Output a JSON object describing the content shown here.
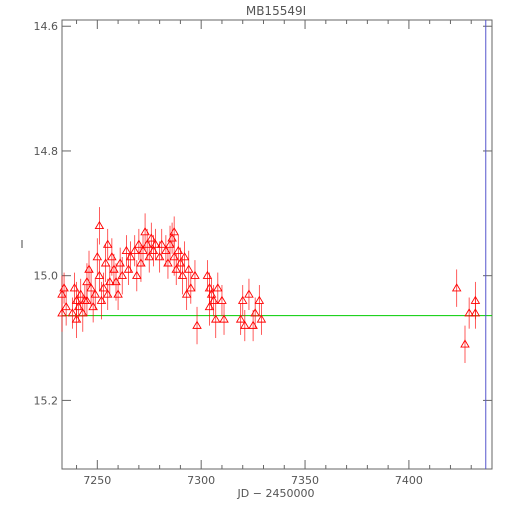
{
  "chart_data": {
    "type": "scatter",
    "title": "MB15549I",
    "xlabel": "JD − 2450000",
    "ylabel": "I",
    "xlim": [
      7233,
      7440
    ],
    "ylim": [
      15.31,
      14.59
    ],
    "y_inverted": true,
    "grid": false,
    "x_ticks": [
      7250,
      7300,
      7350,
      7400
    ],
    "y_ticks": [
      14.6,
      14.8,
      15.0,
      15.2
    ],
    "x_tick_labels": [
      "7250",
      "7300",
      "7350",
      "7400"
    ],
    "y_tick_labels": [
      "14.6",
      "14.8",
      "15.0",
      "15.2"
    ],
    "reference_line": {
      "y": 15.064,
      "color": "#00cc00"
    },
    "vertical_marker": {
      "x": 7437,
      "color": "#5555cc"
    },
    "series": [
      {
        "marker": "triangle",
        "color": "#ff0000",
        "points": [
          [
            7233,
            15.03,
            0.03
          ],
          [
            7233,
            15.06,
            0.03
          ],
          [
            7234,
            15.02,
            0.025
          ],
          [
            7235,
            15.05,
            0.03
          ],
          [
            7238,
            15.06,
            0.025
          ],
          [
            7239,
            15.02,
            0.025
          ],
          [
            7240,
            15.04,
            0.03
          ],
          [
            7240,
            15.07,
            0.03
          ],
          [
            7241,
            15.05,
            0.025
          ],
          [
            7242,
            15.03,
            0.025
          ],
          [
            7243,
            15.06,
            0.03
          ],
          [
            7244,
            15.04,
            0.025
          ],
          [
            7245,
            15.01,
            0.03
          ],
          [
            7245,
            15.04,
            0.025
          ],
          [
            7246,
            14.99,
            0.03
          ],
          [
            7247,
            15.02,
            0.03
          ],
          [
            7248,
            15.05,
            0.025
          ],
          [
            7249,
            15.03,
            0.025
          ],
          [
            7250,
            14.97,
            0.03
          ],
          [
            7251,
            14.92,
            0.03
          ],
          [
            7251,
            15.0,
            0.025
          ],
          [
            7252,
            15.04,
            0.03
          ],
          [
            7253,
            15.02,
            0.025
          ],
          [
            7254,
            14.98,
            0.03
          ],
          [
            7255,
            14.95,
            0.025
          ],
          [
            7255,
            15.03,
            0.025
          ],
          [
            7256,
            15.01,
            0.025
          ],
          [
            7257,
            14.97,
            0.03
          ],
          [
            7258,
            14.99,
            0.025
          ],
          [
            7259,
            15.01,
            0.03
          ],
          [
            7260,
            15.03,
            0.025
          ],
          [
            7261,
            14.98,
            0.025
          ],
          [
            7262,
            15.0,
            0.03
          ],
          [
            7264,
            14.96,
            0.025
          ],
          [
            7265,
            14.99,
            0.025
          ],
          [
            7266,
            14.97,
            0.025
          ],
          [
            7268,
            14.96,
            0.025
          ],
          [
            7269,
            15.0,
            0.025
          ],
          [
            7270,
            14.95,
            0.025
          ],
          [
            7271,
            14.98,
            0.03
          ],
          [
            7272,
            14.96,
            0.025
          ],
          [
            7273,
            14.93,
            0.03
          ],
          [
            7274,
            14.95,
            0.025
          ],
          [
            7275,
            14.97,
            0.025
          ],
          [
            7276,
            14.94,
            0.025
          ],
          [
            7277,
            14.96,
            0.025
          ],
          [
            7278,
            14.95,
            0.025
          ],
          [
            7280,
            14.97,
            0.025
          ],
          [
            7281,
            14.95,
            0.025
          ],
          [
            7283,
            14.96,
            0.025
          ],
          [
            7284,
            14.98,
            0.025
          ],
          [
            7285,
            14.95,
            0.03
          ],
          [
            7286,
            14.94,
            0.025
          ],
          [
            7287,
            14.97,
            0.03
          ],
          [
            7287,
            14.93,
            0.025
          ],
          [
            7288,
            14.99,
            0.025
          ],
          [
            7289,
            14.96,
            0.025
          ],
          [
            7290,
            14.98,
            0.025
          ],
          [
            7291,
            15.0,
            0.03
          ],
          [
            7292,
            14.97,
            0.025
          ],
          [
            7293,
            15.03,
            0.025
          ],
          [
            7294,
            14.99,
            0.03
          ],
          [
            7295,
            15.02,
            0.025
          ],
          [
            7297,
            15.0,
            0.025
          ],
          [
            7298,
            15.08,
            0.03
          ],
          [
            7303,
            15.0,
            0.025
          ],
          [
            7304,
            15.02,
            0.025
          ],
          [
            7304,
            15.05,
            0.03
          ],
          [
            7305,
            15.03,
            0.025
          ],
          [
            7306,
            15.04,
            0.025
          ],
          [
            7307,
            15.07,
            0.03
          ],
          [
            7308,
            15.02,
            0.025
          ],
          [
            7310,
            15.04,
            0.025
          ],
          [
            7311,
            15.07,
            0.025
          ],
          [
            7319,
            15.07,
            0.025
          ],
          [
            7320,
            15.04,
            0.025
          ],
          [
            7321,
            15.08,
            0.025
          ],
          [
            7323,
            15.03,
            0.025
          ],
          [
            7325,
            15.08,
            0.025
          ],
          [
            7326,
            15.06,
            0.025
          ],
          [
            7328,
            15.04,
            0.025
          ],
          [
            7329,
            15.07,
            0.025
          ],
          [
            7423,
            15.02,
            0.03
          ],
          [
            7427,
            15.11,
            0.03
          ],
          [
            7429,
            15.06,
            0.025
          ],
          [
            7432,
            15.04,
            0.03
          ],
          [
            7432,
            15.06,
            0.025
          ]
        ]
      }
    ]
  }
}
